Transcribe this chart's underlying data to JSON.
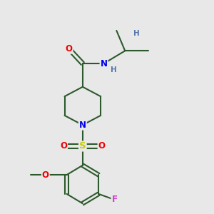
{
  "background_color": "#e8e8e8",
  "bond_color": "#2d5a2d",
  "bond_width": 1.5,
  "atom_colors": {
    "C": "#2d5a2d",
    "N": "#0000ee",
    "O": "#ee0000",
    "S": "#cccc00",
    "F": "#cc44cc",
    "H": "#5577aa"
  },
  "font_size": 8.5,
  "fig_size": [
    3.0,
    3.0
  ],
  "dpi": 100,
  "xlim": [
    0,
    10
  ],
  "ylim": [
    0,
    10
  ]
}
